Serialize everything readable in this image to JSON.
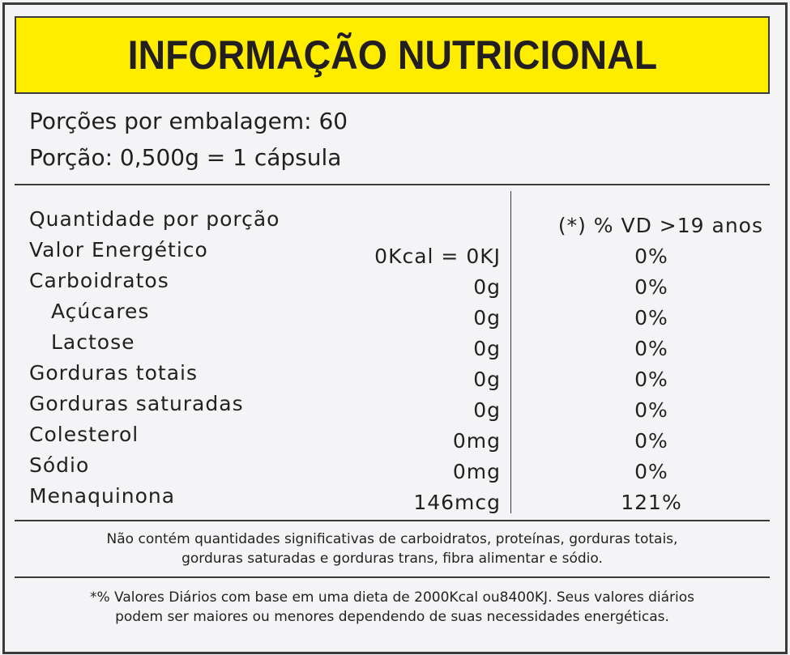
{
  "title": "INFORMAÇÃO NUTRICIONAL",
  "serving": {
    "per_package": "Porções por embalagem: 60",
    "portion": "Porção: 0,500g = 1 cápsula"
  },
  "header": {
    "quantity_label": "Quantidade por porção",
    "vd_label": "(*) % VD  >19 anos"
  },
  "nutrients": [
    {
      "name": "Valor Energético",
      "amount": "0Kcal = 0KJ",
      "vd": "0%"
    },
    {
      "name": "Carboidratos",
      "amount": "0g",
      "vd": "0%"
    },
    {
      "name": "Açúcares",
      "amount": "0g",
      "vd": "0%"
    },
    {
      "name": "Lactose",
      "amount": "0g",
      "vd": "0%"
    },
    {
      "name": "Gorduras totais",
      "amount": "0g",
      "vd": "0%"
    },
    {
      "name": "Gorduras saturadas",
      "amount": "0g",
      "vd": "0%"
    },
    {
      "name": "Colesterol",
      "amount": "0mg",
      "vd": "0%"
    },
    {
      "name": "Sódio",
      "amount": "0mg",
      "vd": "0%"
    },
    {
      "name": "Menaquinona",
      "amount": "146mcg",
      "vd": "121%"
    }
  ],
  "notes": {
    "not_significant_1": "Não contém quantidades significativas de carboidratos, proteínas, gorduras totais,",
    "not_significant_2": "gorduras saturadas e gorduras trans, fibra alimentar e sódio.",
    "daily_values_1": "*% Valores Diários com base em uma dieta de 2000Kcal ou8400KJ. Seus valores diários",
    "daily_values_2": "podem ser maiores ou menores dependendo de suas necessidades energéticas."
  },
  "colors": {
    "title_background": "#ffed00",
    "border": "#3a3a3a",
    "text": "#231f20",
    "panel": "#f4f4f6"
  }
}
